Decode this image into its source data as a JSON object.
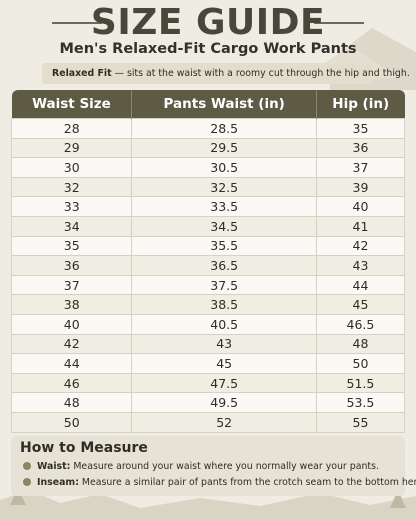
{
  "header": {
    "title": "SIZE GUIDE",
    "subtitle": "Men's Relaxed-Fit Cargo Work Pants"
  },
  "fit_note": {
    "label": "Relaxed Fit",
    "text": " — sits at the waist with a roomy cut through the hip and thigh."
  },
  "table": {
    "columns": [
      "Waist Size",
      "Pants Waist (in)",
      "Hip (in)"
    ],
    "rows": [
      [
        28,
        28.5,
        35
      ],
      [
        29,
        29.5,
        36
      ],
      [
        30,
        30.5,
        37
      ],
      [
        32,
        32.5,
        39
      ],
      [
        33,
        33.5,
        40
      ],
      [
        34,
        34.5,
        41
      ],
      [
        35,
        35.5,
        42
      ],
      [
        36,
        36.5,
        43
      ],
      [
        37,
        37.5,
        44
      ],
      [
        38,
        38.5,
        45
      ],
      [
        40,
        40.5,
        46.5
      ],
      [
        42,
        43,
        48
      ],
      [
        44,
        45,
        50
      ],
      [
        46,
        47.5,
        51.5
      ],
      [
        48,
        49.5,
        53.5
      ],
      [
        50,
        52,
        55
      ]
    ]
  },
  "how_to_measure": {
    "heading": "How to Measure",
    "items": [
      {
        "label": "Waist:",
        "text": " Measure around your waist where you normally wear your pants."
      },
      {
        "label": "Inseam:",
        "text": " Measure a similar pair of pants from the crotch seam to the bottom hem."
      }
    ]
  }
}
